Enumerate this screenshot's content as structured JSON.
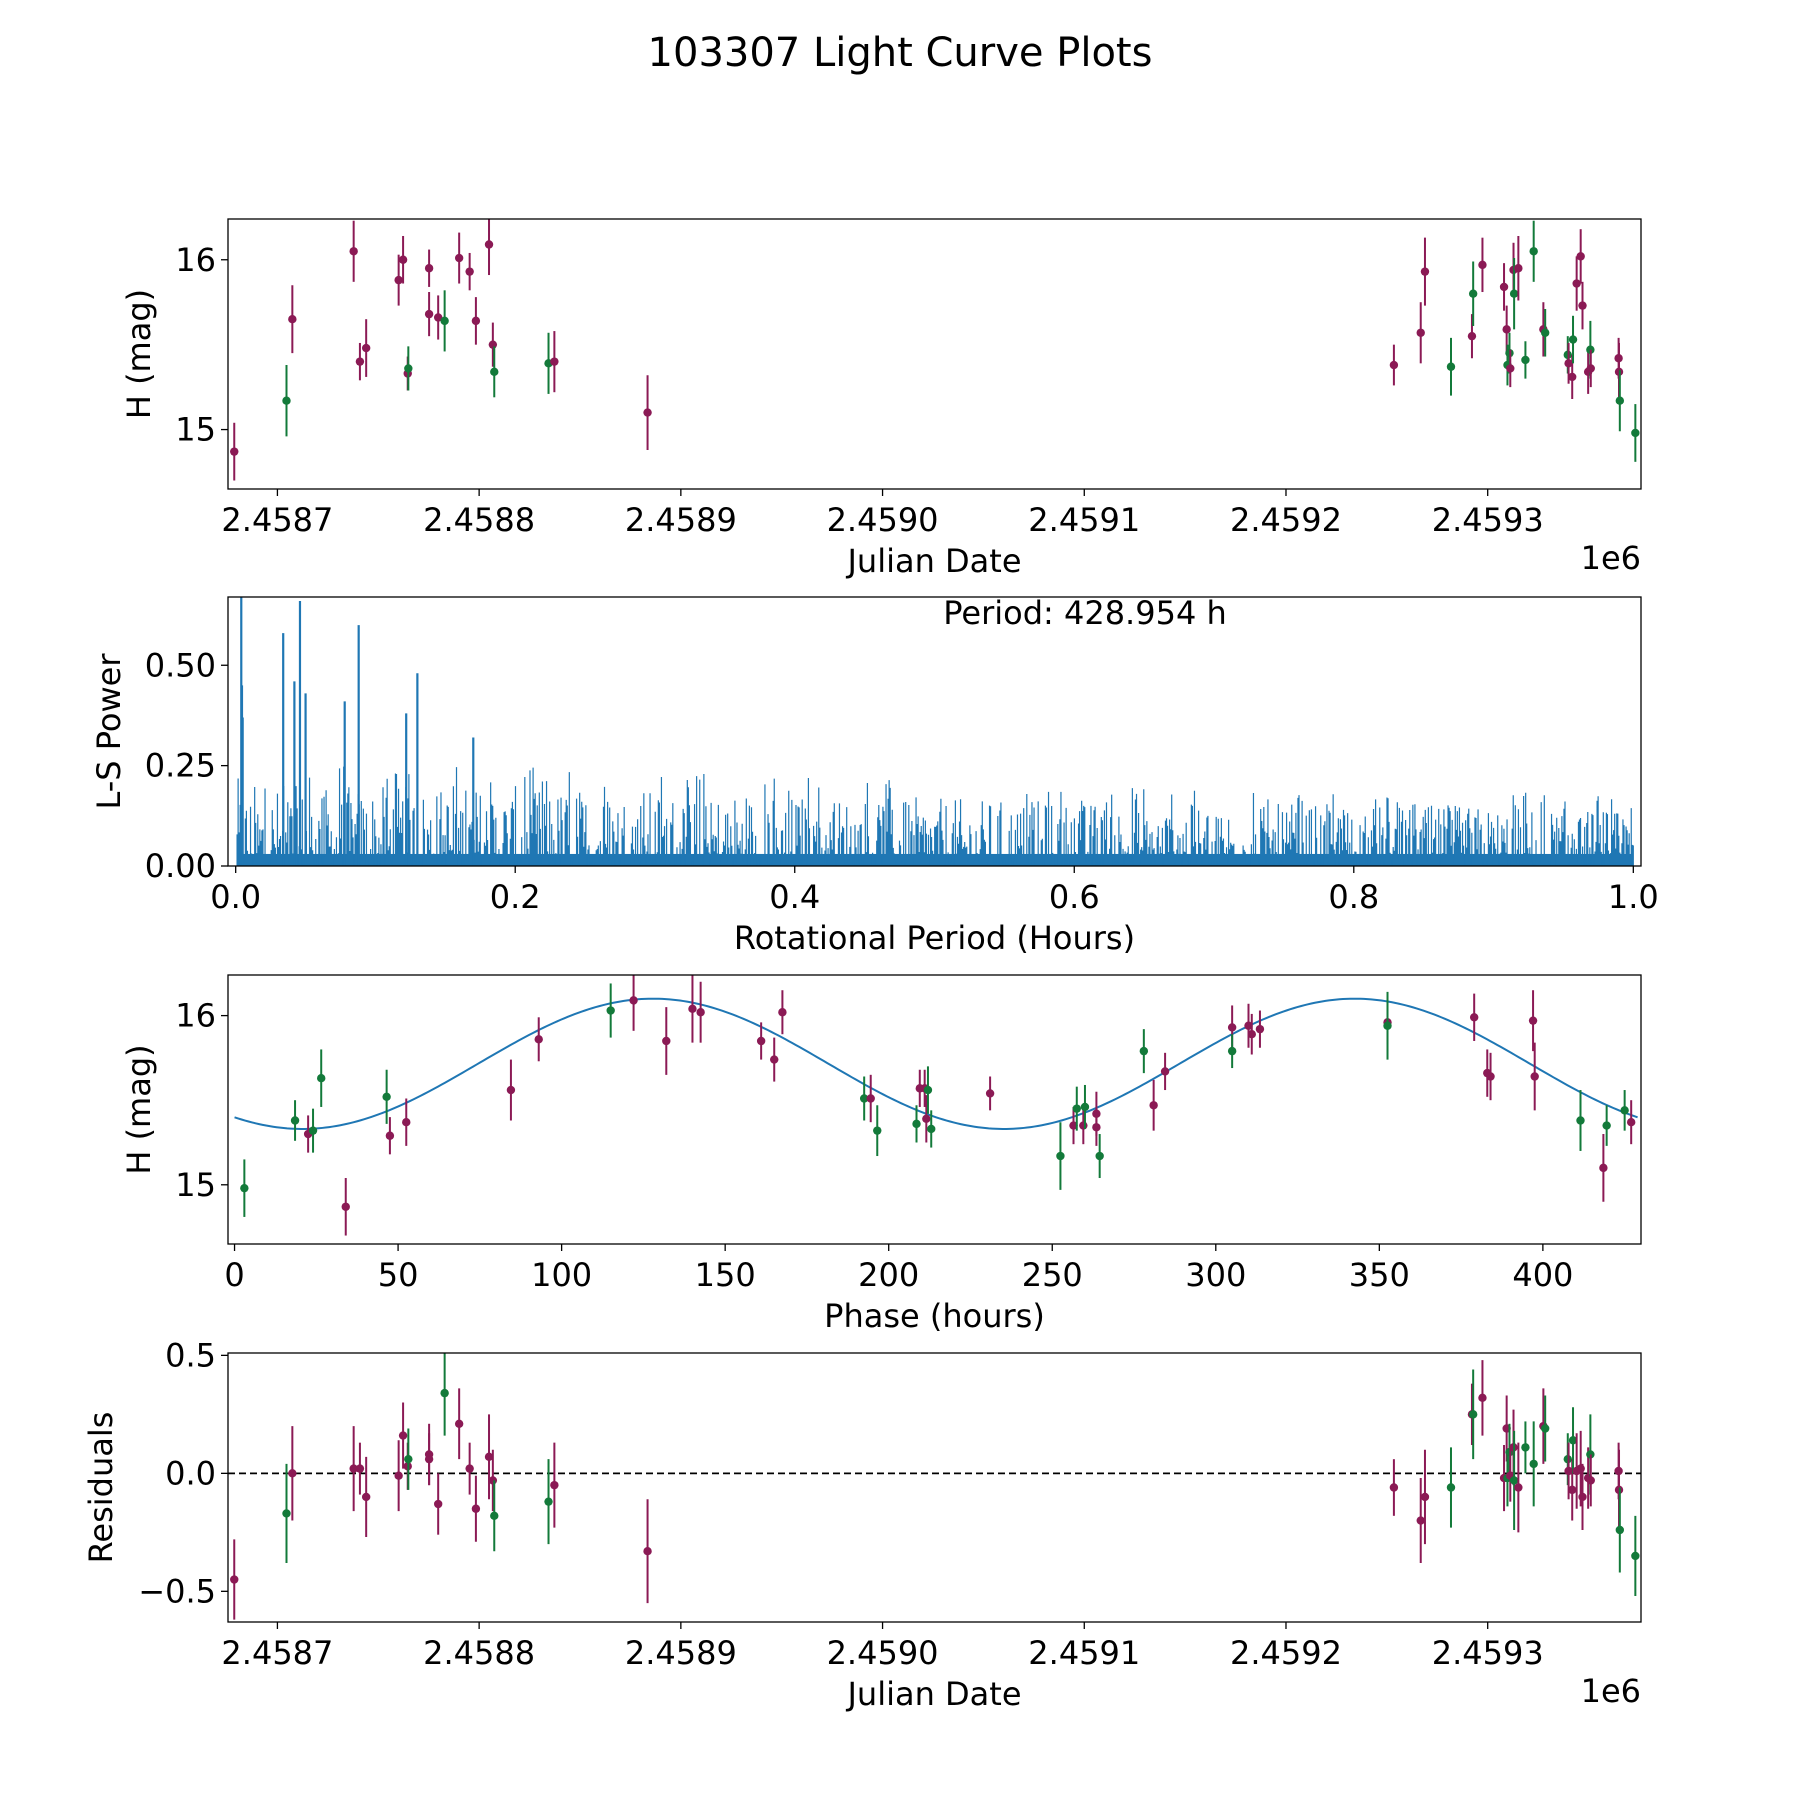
{
  "title": "103307 Light Curve Plots",
  "colors": {
    "r": "#8b1a55",
    "g": "#137a3a",
    "fit": "#1f77b4",
    "pgram": "#1f77b4"
  },
  "chart_data": [
    {
      "id": "lightcurve",
      "type": "scatter",
      "xlabel": "Julian Date",
      "ylabel": "H (mag)",
      "offset_label": "1e6",
      "xlim": [
        2458675.5,
        2459376
      ],
      "ylim": [
        14.65,
        16.24
      ],
      "xticks": [
        2458700,
        2458800,
        2458900,
        2459000,
        2459100,
        2459200,
        2459300
      ],
      "xticklabels": [
        "2.4587",
        "2.4588",
        "2.4589",
        "2.4590",
        "2.4591",
        "2.4592",
        "2.4593"
      ],
      "yticks": [
        15,
        16
      ],
      "yticklabels": [
        "15",
        "16"
      ],
      "points": [
        [
          2458678.6,
          14.87,
          0.17,
          "r"
        ],
        [
          2458704.5,
          15.17,
          0.21,
          "g"
        ],
        [
          2458707.4,
          15.65,
          0.2,
          "r"
        ],
        [
          2458737.8,
          16.05,
          0.18,
          "r"
        ],
        [
          2458740.9,
          15.4,
          0.11,
          "r"
        ],
        [
          2458744.0,
          15.48,
          0.17,
          "r"
        ],
        [
          2458760.1,
          15.88,
          0.15,
          "r"
        ],
        [
          2458762.3,
          16.0,
          0.14,
          "r"
        ],
        [
          2458764.6,
          15.33,
          0.1,
          "r"
        ],
        [
          2458764.9,
          15.36,
          0.13,
          "g"
        ],
        [
          2458775.2,
          15.95,
          0.11,
          "r"
        ],
        [
          2458775.2,
          15.68,
          0.13,
          "r"
        ],
        [
          2458779.7,
          15.66,
          0.13,
          "r"
        ],
        [
          2458782.9,
          15.64,
          0.18,
          "g"
        ],
        [
          2458790.1,
          16.01,
          0.15,
          "r"
        ],
        [
          2458795.3,
          15.93,
          0.11,
          "r"
        ],
        [
          2458798.4,
          15.64,
          0.14,
          "r"
        ],
        [
          2458804.9,
          16.09,
          0.18,
          "r"
        ],
        [
          2458806.8,
          15.5,
          0.13,
          "r"
        ],
        [
          2458807.5,
          15.34,
          0.15,
          "g"
        ],
        [
          2458834.4,
          15.39,
          0.18,
          "g"
        ],
        [
          2458837.3,
          15.4,
          0.18,
          "r"
        ],
        [
          2458883.5,
          15.1,
          0.22,
          "r"
        ],
        [
          2459253.5,
          15.38,
          0.12,
          "r"
        ],
        [
          2459266.8,
          15.57,
          0.18,
          "r"
        ],
        [
          2459268.9,
          15.93,
          0.2,
          "r"
        ],
        [
          2459281.8,
          15.37,
          0.17,
          "g"
        ],
        [
          2459292.2,
          15.55,
          0.13,
          "r"
        ],
        [
          2459292.8,
          15.8,
          0.19,
          "g"
        ],
        [
          2459297.4,
          15.97,
          0.16,
          "r"
        ],
        [
          2459308.1,
          15.84,
          0.14,
          "r"
        ],
        [
          2459309.4,
          15.59,
          0.14,
          "r"
        ],
        [
          2459309.8,
          15.38,
          0.12,
          "g"
        ],
        [
          2459310.8,
          15.45,
          0.12,
          "g"
        ],
        [
          2459311.2,
          15.36,
          0.11,
          "r"
        ],
        [
          2459312.8,
          15.94,
          0.16,
          "r"
        ],
        [
          2459313.1,
          15.8,
          0.21,
          "g"
        ],
        [
          2459315.2,
          15.95,
          0.19,
          "r"
        ],
        [
          2459318.7,
          15.41,
          0.11,
          "g"
        ],
        [
          2459322.8,
          16.05,
          0.18,
          "g"
        ],
        [
          2459327.6,
          15.59,
          0.16,
          "r"
        ],
        [
          2459328.5,
          15.57,
          0.14,
          "g"
        ],
        [
          2459339.7,
          15.44,
          0.11,
          "g"
        ],
        [
          2459340.1,
          15.39,
          0.12,
          "r"
        ],
        [
          2459341.9,
          15.31,
          0.13,
          "r"
        ],
        [
          2459342.3,
          15.53,
          0.14,
          "g"
        ],
        [
          2459344.1,
          15.86,
          0.16,
          "r"
        ],
        [
          2459346.1,
          16.02,
          0.16,
          "r"
        ],
        [
          2459347.0,
          15.73,
          0.14,
          "r"
        ],
        [
          2459349.8,
          15.34,
          0.13,
          "r"
        ],
        [
          2459350.9,
          15.47,
          0.17,
          "g"
        ],
        [
          2459351.1,
          15.36,
          0.11,
          "r"
        ],
        [
          2459364.9,
          15.42,
          0.12,
          "r"
        ],
        [
          2459365.1,
          15.34,
          0.17,
          "r"
        ],
        [
          2459365.5,
          15.17,
          0.18,
          "g"
        ],
        [
          2459373.2,
          14.98,
          0.17,
          "g"
        ]
      ]
    },
    {
      "id": "periodogram",
      "type": "line",
      "xlabel": "Rotational Period (Hours)",
      "ylabel": "L-S Power",
      "annotation": "Period: 428.954 h",
      "xlim": [
        -0.0055,
        1.0055
      ],
      "ylim": [
        0,
        0.67
      ],
      "xticks": [
        0.0,
        0.2,
        0.4,
        0.6,
        0.8,
        1.0
      ],
      "xticklabels": [
        "0.0",
        "0.2",
        "0.4",
        "0.6",
        "0.8",
        "1.0"
      ],
      "yticks": [
        0.0,
        0.25,
        0.5
      ],
      "yticklabels": [
        "0.00",
        "0.25",
        "0.50"
      ],
      "x_range": [
        0.001,
        1.0
      ],
      "n_samples": 1350,
      "envelope": [
        [
          0.0,
          0.2
        ],
        [
          0.2,
          0.2
        ],
        [
          0.6,
          0.16
        ],
        [
          0.9,
          0.15
        ],
        [
          1.0,
          0.14
        ]
      ],
      "peaks": [
        [
          0.004,
          0.67
        ],
        [
          0.0045,
          0.45
        ],
        [
          0.005,
          0.37
        ],
        [
          0.034,
          0.58
        ],
        [
          0.042,
          0.46
        ],
        [
          0.046,
          0.66
        ],
        [
          0.05,
          0.43
        ],
        [
          0.078,
          0.41
        ],
        [
          0.088,
          0.6
        ],
        [
          0.13,
          0.48
        ],
        [
          0.122,
          0.38
        ],
        [
          0.17,
          0.32
        ]
      ]
    },
    {
      "id": "phased",
      "type": "scatter",
      "xlabel": "Phase (hours)",
      "ylabel": "H (mag)",
      "xlim": [
        -2,
        430
      ],
      "ylim": [
        14.65,
        16.24
      ],
      "xticks": [
        0,
        50,
        100,
        150,
        200,
        250,
        300,
        350,
        400
      ],
      "xticklabels": [
        "0",
        "50",
        "100",
        "150",
        "200",
        "250",
        "300",
        "350",
        "400"
      ],
      "yticks": [
        15,
        16
      ],
      "yticklabels": [
        "15",
        "16"
      ],
      "fit": {
        "mean": 15.715,
        "amplitude": 0.385,
        "period_hours": 214.477,
        "peak_phase": 128.0,
        "x_range": [
          0,
          428.954
        ]
      },
      "points": [
        [
          3,
          14.98,
          0.17,
          "g"
        ],
        [
          18.5,
          15.38,
          0.12,
          "g"
        ],
        [
          22.5,
          15.3,
          0.11,
          "r"
        ],
        [
          24,
          15.32,
          0.13,
          "g"
        ],
        [
          26.5,
          15.63,
          0.17,
          "g"
        ],
        [
          34,
          14.87,
          0.17,
          "r"
        ],
        [
          46.5,
          15.52,
          0.16,
          "g"
        ],
        [
          47.5,
          15.29,
          0.11,
          "r"
        ],
        [
          52.5,
          15.37,
          0.14,
          "r"
        ],
        [
          84.5,
          15.56,
          0.18,
          "r"
        ],
        [
          93,
          15.86,
          0.13,
          "r"
        ],
        [
          115,
          16.03,
          0.16,
          "g"
        ],
        [
          122,
          16.09,
          0.18,
          "r"
        ],
        [
          132,
          15.85,
          0.2,
          "r"
        ],
        [
          140,
          16.04,
          0.2,
          "r"
        ],
        [
          142.5,
          16.02,
          0.18,
          "r"
        ],
        [
          161,
          15.85,
          0.11,
          "r"
        ],
        [
          165,
          15.74,
          0.13,
          "r"
        ],
        [
          167.5,
          16.02,
          0.13,
          "r"
        ],
        [
          192.5,
          15.51,
          0.13,
          "g"
        ],
        [
          194.5,
          15.51,
          0.14,
          "r"
        ],
        [
          196.5,
          15.32,
          0.15,
          "g"
        ],
        [
          208.5,
          15.36,
          0.11,
          "g"
        ],
        [
          209.5,
          15.57,
          0.11,
          "r"
        ],
        [
          211,
          15.57,
          0.11,
          "r"
        ],
        [
          211.5,
          15.39,
          0.14,
          "r"
        ],
        [
          212,
          15.56,
          0.14,
          "g"
        ],
        [
          213,
          15.33,
          0.11,
          "g"
        ],
        [
          231,
          15.54,
          0.1,
          "r"
        ],
        [
          252.5,
          15.17,
          0.2,
          "g"
        ],
        [
          256.5,
          15.35,
          0.11,
          "r"
        ],
        [
          257.5,
          15.45,
          0.13,
          "g"
        ],
        [
          259.5,
          15.35,
          0.11,
          "r"
        ],
        [
          260,
          15.46,
          0.13,
          "g"
        ],
        [
          263.5,
          15.34,
          0.11,
          "r"
        ],
        [
          263.5,
          15.42,
          0.13,
          "r"
        ],
        [
          264.5,
          15.17,
          0.13,
          "g"
        ],
        [
          278,
          15.79,
          0.13,
          "g"
        ],
        [
          281,
          15.47,
          0.15,
          "r"
        ],
        [
          284.5,
          15.67,
          0.11,
          "r"
        ],
        [
          305,
          15.93,
          0.13,
          "r"
        ],
        [
          305,
          15.79,
          0.1,
          "g"
        ],
        [
          310,
          15.94,
          0.13,
          "r"
        ],
        [
          311,
          15.89,
          0.12,
          "r"
        ],
        [
          313.5,
          15.92,
          0.11,
          "r"
        ],
        [
          352.5,
          15.96,
          0.13,
          "r"
        ],
        [
          352.5,
          15.94,
          0.2,
          "g"
        ],
        [
          379,
          15.99,
          0.14,
          "r"
        ],
        [
          383,
          15.66,
          0.14,
          "r"
        ],
        [
          384,
          15.64,
          0.14,
          "r"
        ],
        [
          397,
          15.97,
          0.18,
          "r"
        ],
        [
          397.5,
          15.64,
          0.2,
          "r"
        ],
        [
          411.5,
          15.38,
          0.18,
          "g"
        ],
        [
          418.5,
          15.1,
          0.2,
          "r"
        ],
        [
          419.5,
          15.35,
          0.12,
          "g"
        ],
        [
          425,
          15.44,
          0.12,
          "g"
        ],
        [
          427,
          15.37,
          0.13,
          "r"
        ]
      ]
    },
    {
      "id": "residuals",
      "type": "scatter",
      "xlabel": "Julian Date",
      "ylabel": "Residuals",
      "offset_label": "1e6",
      "xlim": [
        2458675.5,
        2459376
      ],
      "ylim": [
        -0.63,
        0.51
      ],
      "xticks": [
        2458700,
        2458800,
        2458900,
        2459000,
        2459100,
        2459200,
        2459300
      ],
      "xticklabels": [
        "2.4587",
        "2.4588",
        "2.4589",
        "2.4590",
        "2.4591",
        "2.4592",
        "2.4593"
      ],
      "yticks": [
        -0.5,
        0.0,
        0.5
      ],
      "yticklabels": [
        "−0.5",
        "0.0",
        "0.5"
      ],
      "zero_line": 0.0,
      "points": [
        [
          2458678.6,
          -0.45,
          0.17,
          "r"
        ],
        [
          2458704.5,
          -0.17,
          0.21,
          "g"
        ],
        [
          2458707.4,
          0.0,
          0.2,
          "r"
        ],
        [
          2458737.8,
          0.02,
          0.18,
          "r"
        ],
        [
          2458740.9,
          0.02,
          0.11,
          "r"
        ],
        [
          2458744.0,
          -0.1,
          0.17,
          "r"
        ],
        [
          2458760.1,
          -0.01,
          0.15,
          "r"
        ],
        [
          2458762.3,
          0.16,
          0.14,
          "r"
        ],
        [
          2458764.6,
          0.03,
          0.1,
          "r"
        ],
        [
          2458764.9,
          0.06,
          0.13,
          "g"
        ],
        [
          2458775.2,
          0.06,
          0.11,
          "r"
        ],
        [
          2458775.2,
          0.08,
          0.13,
          "r"
        ],
        [
          2458779.7,
          -0.13,
          0.13,
          "r"
        ],
        [
          2458782.9,
          0.34,
          0.18,
          "g"
        ],
        [
          2458790.1,
          0.21,
          0.15,
          "r"
        ],
        [
          2458795.3,
          0.02,
          0.11,
          "r"
        ],
        [
          2458798.4,
          -0.15,
          0.14,
          "r"
        ],
        [
          2458804.9,
          0.07,
          0.18,
          "r"
        ],
        [
          2458806.8,
          -0.03,
          0.13,
          "r"
        ],
        [
          2458807.5,
          -0.18,
          0.15,
          "g"
        ],
        [
          2458834.4,
          -0.12,
          0.18,
          "g"
        ],
        [
          2458837.3,
          -0.05,
          0.18,
          "r"
        ],
        [
          2458883.5,
          -0.33,
          0.22,
          "r"
        ],
        [
          2459253.5,
          -0.06,
          0.12,
          "r"
        ],
        [
          2459266.8,
          -0.2,
          0.18,
          "r"
        ],
        [
          2459268.9,
          -0.1,
          0.2,
          "r"
        ],
        [
          2459281.8,
          -0.06,
          0.17,
          "g"
        ],
        [
          2459292.2,
          0.25,
          0.13,
          "r"
        ],
        [
          2459292.8,
          0.25,
          0.19,
          "g"
        ],
        [
          2459297.4,
          0.32,
          0.16,
          "r"
        ],
        [
          2459308.1,
          -0.02,
          0.14,
          "r"
        ],
        [
          2459309.4,
          0.19,
          0.14,
          "r"
        ],
        [
          2459309.8,
          -0.02,
          0.12,
          "g"
        ],
        [
          2459310.8,
          0.09,
          0.12,
          "g"
        ],
        [
          2459311.2,
          -0.01,
          0.11,
          "r"
        ],
        [
          2459312.8,
          0.11,
          0.16,
          "r"
        ],
        [
          2459313.1,
          -0.03,
          0.21,
          "g"
        ],
        [
          2459315.2,
          -0.06,
          0.19,
          "r"
        ],
        [
          2459318.7,
          0.11,
          0.11,
          "g"
        ],
        [
          2459322.8,
          0.04,
          0.18,
          "g"
        ],
        [
          2459327.6,
          0.2,
          0.16,
          "r"
        ],
        [
          2459328.5,
          0.19,
          0.14,
          "g"
        ],
        [
          2459339.7,
          0.06,
          0.11,
          "g"
        ],
        [
          2459340.1,
          0.01,
          0.12,
          "r"
        ],
        [
          2459341.9,
          -0.07,
          0.13,
          "r"
        ],
        [
          2459342.3,
          0.14,
          0.14,
          "g"
        ],
        [
          2459344.1,
          0.01,
          0.16,
          "r"
        ],
        [
          2459346.1,
          0.02,
          0.16,
          "r"
        ],
        [
          2459347.0,
          -0.1,
          0.14,
          "r"
        ],
        [
          2459349.8,
          -0.02,
          0.13,
          "r"
        ],
        [
          2459350.9,
          0.08,
          0.17,
          "g"
        ],
        [
          2459351.1,
          -0.03,
          0.11,
          "r"
        ],
        [
          2459364.9,
          0.01,
          0.12,
          "r"
        ],
        [
          2459365.1,
          -0.07,
          0.17,
          "r"
        ],
        [
          2459365.5,
          -0.24,
          0.18,
          "g"
        ],
        [
          2459373.2,
          -0.35,
          0.17,
          "g"
        ]
      ]
    }
  ]
}
